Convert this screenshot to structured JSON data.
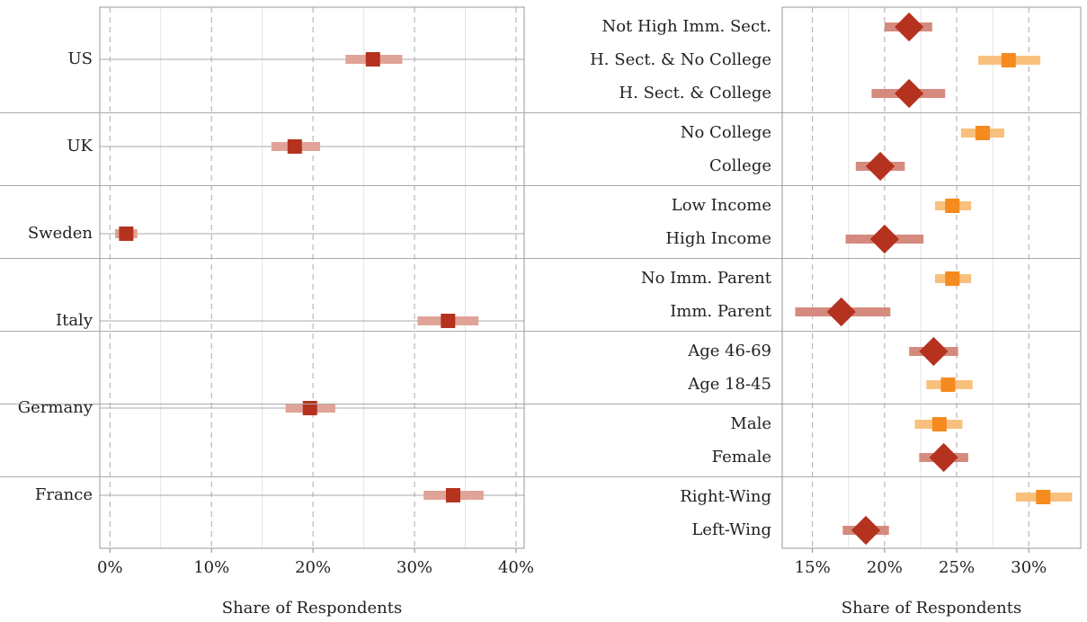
{
  "chart_data": [
    {
      "type": "dotplot",
      "xlabel": "Share of Respondents",
      "categories": [
        "US",
        "UK",
        "Sweden",
        "Italy",
        "Germany",
        "France"
      ],
      "values": [
        25.9,
        18.2,
        1.6,
        33.3,
        19.7,
        33.8
      ],
      "lower": [
        23.2,
        15.9,
        0.5,
        30.3,
        17.3,
        30.9
      ],
      "upper": [
        28.8,
        20.7,
        2.7,
        36.3,
        22.2,
        36.8
      ],
      "color": "#b5321f",
      "ci_color": "#e0a397",
      "xlim": [
        -1,
        40.8
      ],
      "xticks": [
        {
          "value": 0,
          "label": "0%"
        },
        {
          "value": 10,
          "label": "10%"
        },
        {
          "value": 20,
          "label": "20%"
        },
        {
          "value": 30,
          "label": "30%"
        },
        {
          "value": 40,
          "label": "40%"
        }
      ],
      "grid": true
    },
    {
      "type": "grouped-dotplot",
      "xlabel": "Share of Respondents",
      "groups": [
        {
          "categories": [
            "Not High Imm. Sect.",
            "H. Sect. & No College",
            "H. Sect. & College"
          ],
          "values": [
            21.7,
            28.6,
            21.7
          ],
          "lower": [
            20.0,
            26.5,
            19.1
          ],
          "upper": [
            23.3,
            30.8,
            24.2
          ],
          "markers": [
            "diamond",
            "square",
            "diamond"
          ]
        },
        {
          "categories": [
            "No College",
            "College"
          ],
          "values": [
            26.8,
            19.7
          ],
          "lower": [
            25.3,
            18.0
          ],
          "upper": [
            28.3,
            21.4
          ],
          "markers": [
            "square",
            "diamond"
          ]
        },
        {
          "categories": [
            "Low Income",
            "High Income"
          ],
          "values": [
            24.7,
            20.0
          ],
          "lower": [
            23.5,
            17.3
          ],
          "upper": [
            26.0,
            22.7
          ],
          "markers": [
            "square",
            "diamond"
          ]
        },
        {
          "categories": [
            "No Imm. Parent",
            "Imm. Parent"
          ],
          "values": [
            24.7,
            17.0
          ],
          "lower": [
            23.5,
            13.8
          ],
          "upper": [
            26.0,
            20.4
          ],
          "markers": [
            "square",
            "diamond"
          ]
        },
        {
          "categories": [
            "Age 46-69",
            "Age 18-45"
          ],
          "values": [
            23.4,
            24.4
          ],
          "lower": [
            21.7,
            22.9
          ],
          "upper": [
            25.1,
            26.1
          ],
          "markers": [
            "diamond",
            "square"
          ]
        },
        {
          "categories": [
            "Male",
            "Female"
          ],
          "values": [
            23.8,
            24.1
          ],
          "lower": [
            22.1,
            22.4
          ],
          "upper": [
            25.4,
            25.8
          ],
          "markers": [
            "square",
            "diamond"
          ]
        },
        {
          "categories": [
            "Right-Wing",
            "Left-Wing"
          ],
          "values": [
            31.0,
            18.7
          ],
          "lower": [
            29.1,
            17.1
          ],
          "upper": [
            33.0,
            20.3
          ],
          "markers": [
            "square",
            "diamond"
          ]
        }
      ],
      "marker_colors": {
        "square": "#f58a1f",
        "diamond": "#b5321f"
      },
      "ci_colors": {
        "square": "#f9c07d",
        "diamond": "#d58a7e"
      },
      "xlim": [
        12.9,
        33.6
      ],
      "xticks": [
        {
          "value": 15,
          "label": "15%"
        },
        {
          "value": 20,
          "label": "20%"
        },
        {
          "value": 25,
          "label": "25%"
        },
        {
          "value": 30,
          "label": "30%"
        }
      ],
      "grid": true
    }
  ]
}
